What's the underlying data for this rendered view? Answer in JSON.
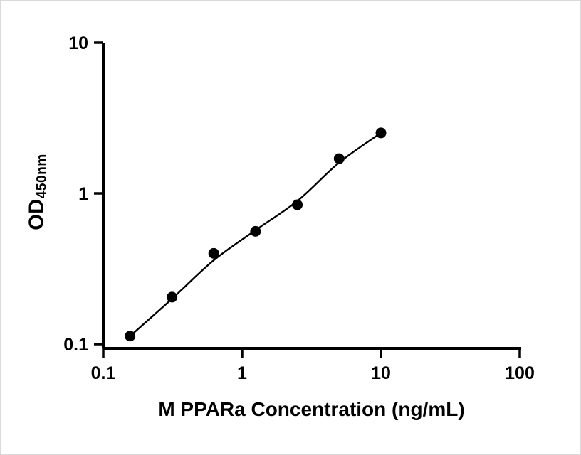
{
  "chart": {
    "xlabel": "M PPARa Concentration (ng/mL)",
    "ylabel_main": "OD",
    "ylabel_sub": "450nm"
  },
  "chart_data": {
    "type": "scatter",
    "title": "",
    "xlabel": "M PPARa Concentration (ng/mL)",
    "ylabel": "OD450nm",
    "x_scale": "log",
    "y_scale": "log",
    "xlim": [
      0.1,
      100
    ],
    "ylim": [
      0.1,
      10
    ],
    "grid": false,
    "legend": "none",
    "x_ticks": [
      {
        "value": 0.1,
        "label": "0.1"
      },
      {
        "value": 1,
        "label": "1"
      },
      {
        "value": 10,
        "label": "10"
      },
      {
        "value": 100,
        "label": "100"
      }
    ],
    "y_ticks": [
      {
        "value": 0.1,
        "label": "0.1"
      },
      {
        "value": 1,
        "label": "1"
      },
      {
        "value": 10,
        "label": "10"
      }
    ],
    "points": [
      {
        "x": 0.156,
        "y": 0.113
      },
      {
        "x": 0.313,
        "y": 0.205
      },
      {
        "x": 0.625,
        "y": 0.4
      },
      {
        "x": 1.25,
        "y": 0.56
      },
      {
        "x": 2.5,
        "y": 0.84
      },
      {
        "x": 5,
        "y": 1.7
      },
      {
        "x": 10,
        "y": 2.52
      }
    ],
    "fit_curve": [
      {
        "x": 0.156,
        "y": 0.113
      },
      {
        "x": 0.313,
        "y": 0.2
      },
      {
        "x": 0.625,
        "y": 0.36
      },
      {
        "x": 1.25,
        "y": 0.57
      },
      {
        "x": 2.5,
        "y": 0.89
      },
      {
        "x": 5,
        "y": 1.6
      },
      {
        "x": 10,
        "y": 2.52
      }
    ],
    "marker": {
      "shape": "circle",
      "color": "#000000",
      "radius_px": 7.5
    },
    "line_color": "#000000",
    "axis_color": "#000000"
  }
}
